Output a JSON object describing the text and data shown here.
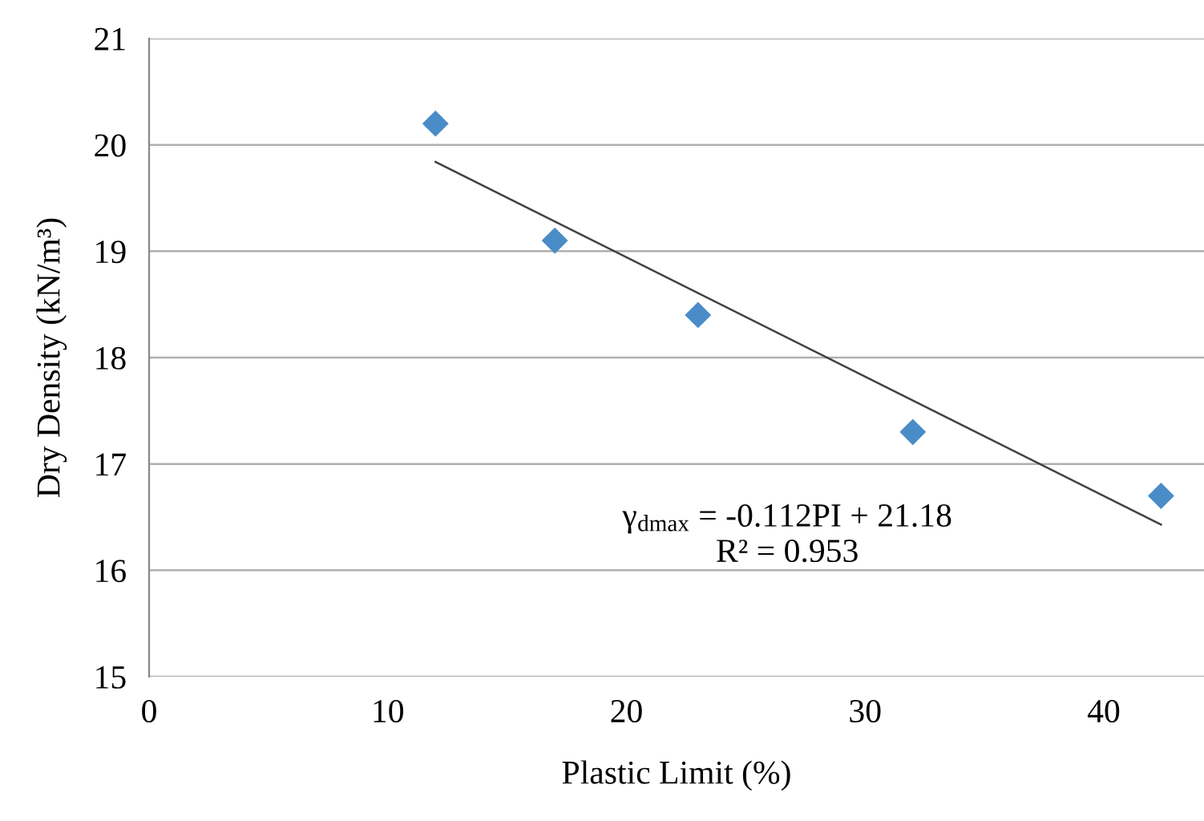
{
  "chart_data": {
    "type": "scatter",
    "xlabel": "Plastic Limit (%)",
    "ylabel": "Dry Density (kN/m³)",
    "xlim": [
      0,
      44.2
    ],
    "xticks": [
      0,
      10,
      20,
      30,
      40
    ],
    "ylim": [
      15,
      21
    ],
    "yticks": [
      15,
      16,
      17,
      18,
      19,
      20,
      21
    ],
    "grid": "y",
    "series": [
      {
        "marker": "diamond",
        "color": "#4a8cc8",
        "x": [
          12,
          17,
          23,
          32,
          42.4
        ],
        "values": [
          20.2,
          19.1,
          18.4,
          17.3,
          16.7
        ]
      },
      {
        "type": "line",
        "marker": "none",
        "color": "#404040",
        "x": [
          12,
          42.4
        ],
        "values": [
          19.84,
          16.43
        ]
      }
    ],
    "annotations": [
      "γ$_{dmax}$ = -0.112PI + 21.18\nR² = 0.953"
    ]
  }
}
